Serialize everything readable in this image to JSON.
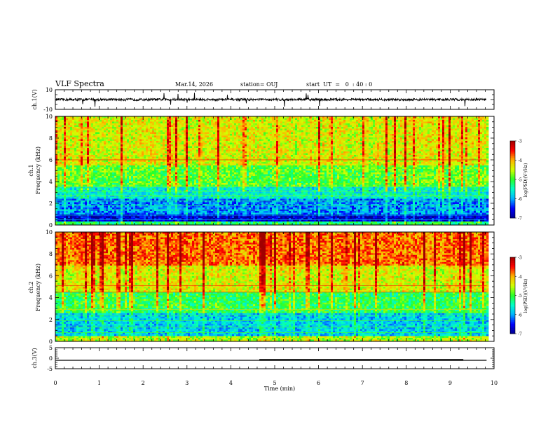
{
  "header": {
    "title": "VLF Spectra",
    "date": "Mar.14, 2026",
    "station": "station= OUJ",
    "start_ut": "start  UT  =   0  : 40 : 0"
  },
  "colors": {
    "background": "#ffffff",
    "axis": "#000000",
    "colormap": [
      "#00008f",
      "#0000ff",
      "#00b4ff",
      "#00ffc8",
      "#28ff28",
      "#d2ff00",
      "#ffb400",
      "#ff0000",
      "#a00000"
    ]
  },
  "chart_data": [
    {
      "id": "ch1v",
      "type": "line",
      "ylabel": "ch.1(V)",
      "ylim": [
        -10,
        10
      ],
      "yticklabels": [
        "10",
        "-10"
      ],
      "baseline": 0,
      "noise_amplitude": 1.2,
      "xlim": [
        0,
        10
      ],
      "data_extent_min": 9.83
    },
    {
      "id": "ch1spec",
      "type": "heatmap",
      "title_line1": "ch.1",
      "ylabel": "Frequency (kHz)",
      "ylim": [
        0,
        10
      ],
      "yticklabels": [
        "0",
        "2",
        "4",
        "6",
        "8",
        "10"
      ],
      "xlim": [
        0,
        10
      ],
      "colorbar": {
        "label": "log(PSD)(V²/Hz)",
        "range": [
          -7,
          -3
        ],
        "ticklabels": [
          "-3",
          "-4",
          "-5",
          "-6",
          "-7"
        ]
      },
      "bands": [
        {
          "f": [
            0,
            0.3
          ],
          "level": -5.2
        },
        {
          "f": [
            0.3,
            1.0
          ],
          "level": -6.7
        },
        {
          "f": [
            1.0,
            2.4
          ],
          "level": -6.1
        },
        {
          "f": [
            2.4,
            3.6
          ],
          "level": -5.6
        },
        {
          "f": [
            3.6,
            5.5
          ],
          "level": -4.9
        },
        {
          "f": [
            5.5,
            10
          ],
          "level": -4.4
        }
      ],
      "tone_lines_khz": [
        0.5,
        0.9,
        1.4,
        1.8,
        2.2,
        2.7,
        3.1,
        3.5,
        6.0
      ]
    },
    {
      "id": "ch2spec",
      "type": "heatmap",
      "title_line1": "ch.2",
      "ylabel": "Frequency (kHz)",
      "ylim": [
        0,
        10
      ],
      "yticklabels": [
        "0",
        "2",
        "4",
        "6",
        "8",
        "10"
      ],
      "xlim": [
        0,
        10
      ],
      "colorbar": {
        "label": "log(PSD)(V²/Hz)",
        "range": [
          -7,
          -3
        ],
        "ticklabels": [
          "-3",
          "-4",
          "-5",
          "-6",
          "-7"
        ]
      },
      "bands": [
        {
          "f": [
            0,
            0.5
          ],
          "level": -4.6
        },
        {
          "f": [
            0.5,
            2.6
          ],
          "level": -5.8
        },
        {
          "f": [
            2.6,
            4.5
          ],
          "level": -5.1
        },
        {
          "f": [
            4.5,
            7.0
          ],
          "level": -4.4
        },
        {
          "f": [
            7.0,
            10
          ],
          "level": -3.8
        }
      ],
      "tone_lines_khz": [
        0.8,
        1.3,
        1.9,
        2.4,
        2.9,
        4.5,
        5.1
      ]
    },
    {
      "id": "ch3v",
      "type": "line",
      "ylabel": "ch.3(V)",
      "ylim": [
        -5,
        5
      ],
      "yticklabels": [
        "5",
        "0",
        "-5"
      ],
      "baseline": -1,
      "raised_segment": {
        "x": [
          4.65,
          9.3
        ],
        "value": -0.8
      },
      "xlim": [
        0,
        10
      ],
      "data_extent_min": 9.83,
      "xlabel": "Time (min)",
      "xticklabels": [
        "0",
        "1",
        "2",
        "3",
        "4",
        "5",
        "6",
        "7",
        "8",
        "9",
        "10"
      ]
    }
  ]
}
